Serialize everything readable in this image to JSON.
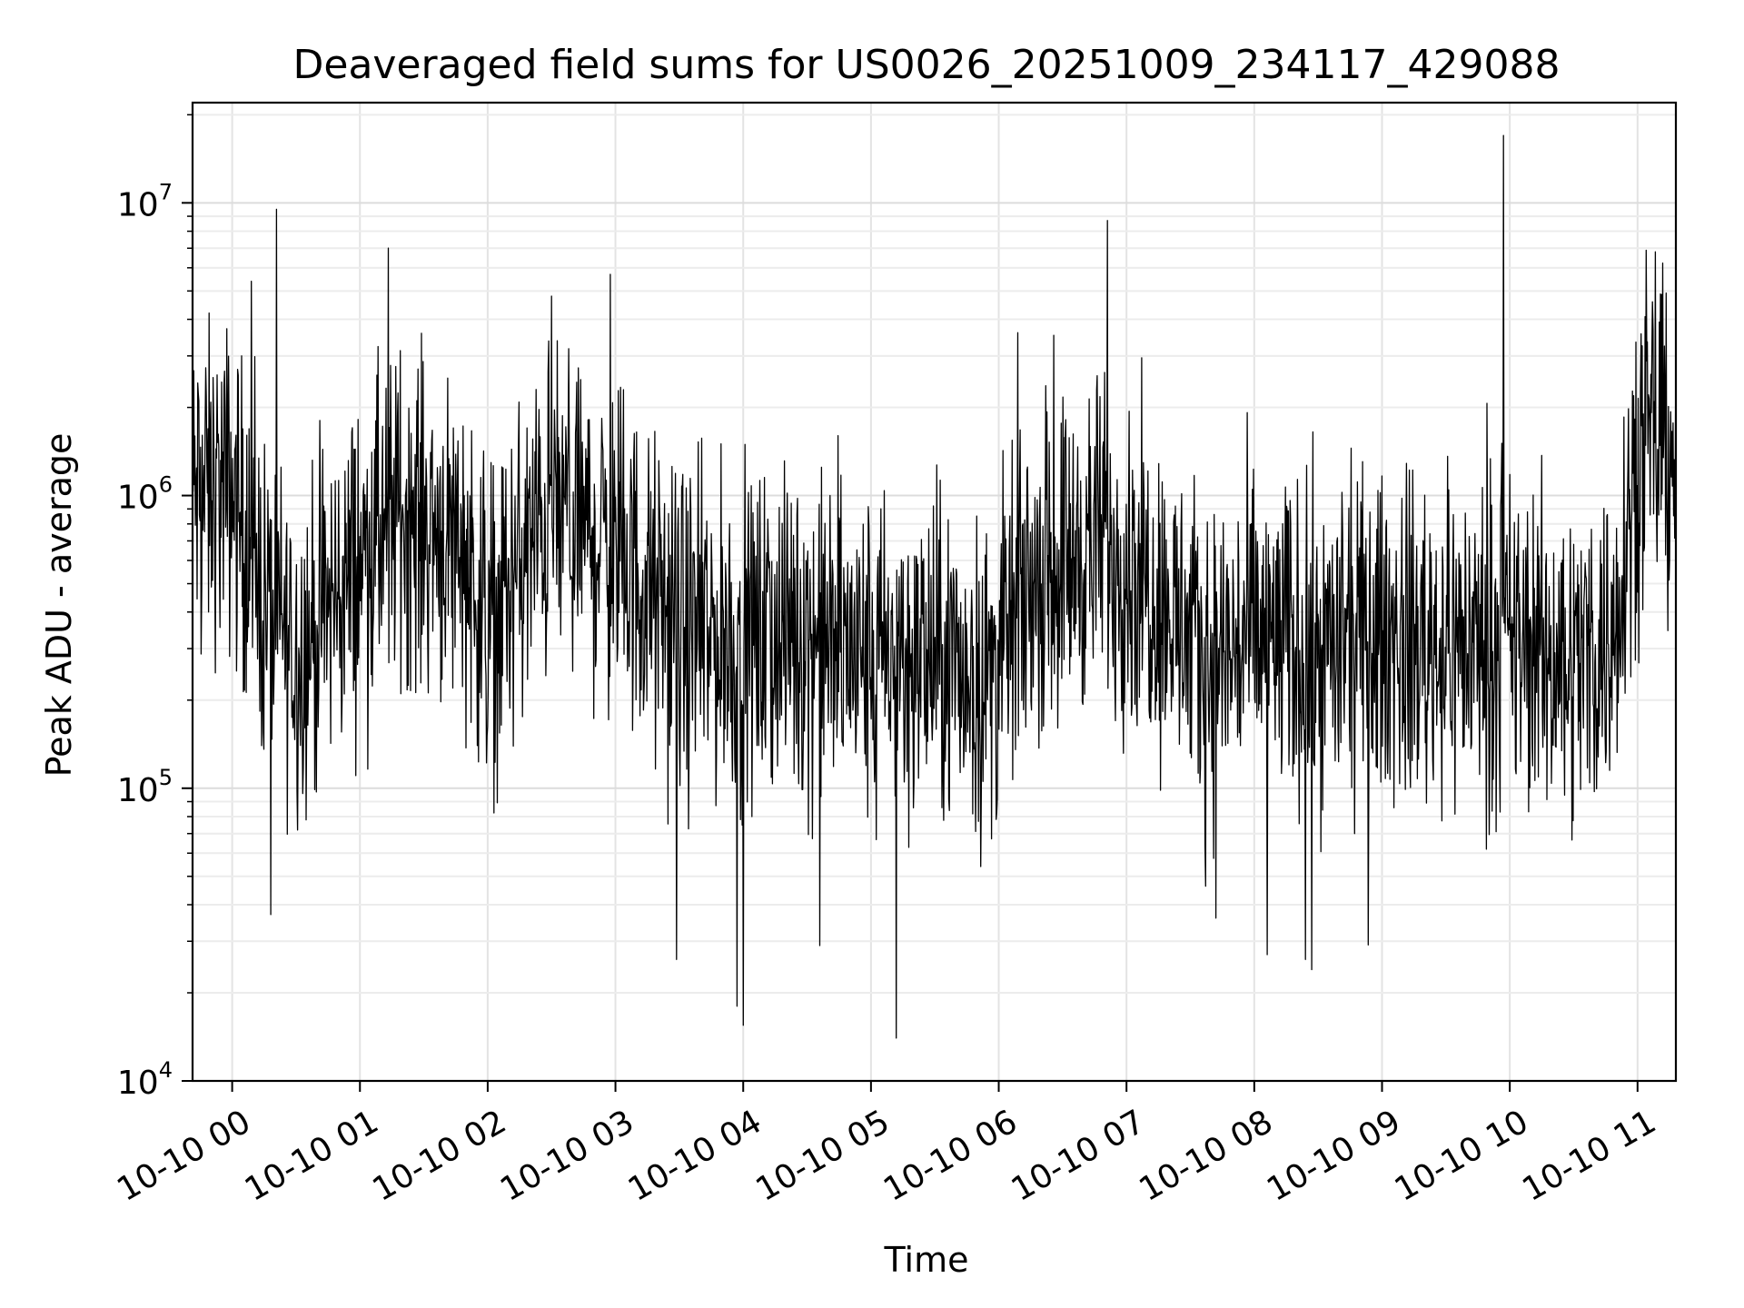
{
  "chart_data": {
    "type": "line",
    "title": "Deaveraged field sums for US0026_20251009_234117_429088",
    "xlabel": "Time",
    "ylabel": "Peak ADU - average",
    "yscale": "log",
    "ylim": [
      10000,
      22000000
    ],
    "xlim_hours": [
      -0.31,
      11.3
    ],
    "grid": true,
    "line_color": "#000000",
    "x_ticks": [
      {
        "hour": 0,
        "label": "10-10 00"
      },
      {
        "hour": 1,
        "label": "10-10 01"
      },
      {
        "hour": 2,
        "label": "10-10 02"
      },
      {
        "hour": 3,
        "label": "10-10 03"
      },
      {
        "hour": 4,
        "label": "10-10 04"
      },
      {
        "hour": 5,
        "label": "10-10 05"
      },
      {
        "hour": 6,
        "label": "10-10 06"
      },
      {
        "hour": 7,
        "label": "10-10 07"
      },
      {
        "hour": 8,
        "label": "10-10 08"
      },
      {
        "hour": 9,
        "label": "10-10 09"
      },
      {
        "hour": 10,
        "label": "10-10 10"
      },
      {
        "hour": 11,
        "label": "10-10 11"
      }
    ],
    "y_ticks": [
      {
        "value": 10000,
        "base": "10",
        "exp": "4"
      },
      {
        "value": 100000,
        "base": "10",
        "exp": "5"
      },
      {
        "value": 1000000,
        "base": "10",
        "exp": "6"
      },
      {
        "value": 10000000,
        "base": "10",
        "exp": "7"
      }
    ],
    "series": [
      {
        "name": "deaveraged field sum",
        "baseline_hours": [
          -0.31,
          0.0,
          0.2,
          0.5,
          1.0,
          1.3,
          1.8,
          2.0,
          2.5,
          3.0,
          3.5,
          4.0,
          4.5,
          5.0,
          5.5,
          5.9,
          6.3,
          6.8,
          7.2,
          7.6,
          8.0,
          8.5,
          9.0,
          9.5,
          10.0,
          10.5,
          10.8,
          11.0,
          11.3
        ],
        "baseline_values": [
          1000000,
          1050000,
          500000,
          280000,
          600000,
          900000,
          700000,
          350000,
          900000,
          650000,
          330000,
          320000,
          340000,
          270000,
          280000,
          230000,
          550000,
          700000,
          500000,
          260000,
          330000,
          290000,
          330000,
          310000,
          320000,
          270000,
          330000,
          1500000,
          1500000
        ],
        "spikes": [
          {
            "hour": 9.95,
            "value": 17000000
          },
          {
            "hour": 6.85,
            "value": 8700000
          },
          {
            "hour": 1.22,
            "value": 7000000
          },
          {
            "hour": 11.14,
            "value": 6800000
          },
          {
            "hour": 2.96,
            "value": 5700000
          },
          {
            "hour": 0.15,
            "value": 5400000
          },
          {
            "hour": 2.5,
            "value": 4800000
          },
          {
            "hour": 6.15,
            "value": 3600000
          },
          {
            "hour": 5.2,
            "value": 14000
          },
          {
            "hour": 4.0,
            "value": 15500
          },
          {
            "hour": 3.95,
            "value": 18000
          },
          {
            "hour": 8.45,
            "value": 24000
          },
          {
            "hour": 8.4,
            "value": 26000
          },
          {
            "hour": 3.48,
            "value": 26000
          },
          {
            "hour": 4.6,
            "value": 29000
          },
          {
            "hour": 8.1,
            "value": 27000
          },
          {
            "hour": 0.3,
            "value": 37000
          },
          {
            "hour": 7.7,
            "value": 36000
          }
        ]
      }
    ]
  }
}
